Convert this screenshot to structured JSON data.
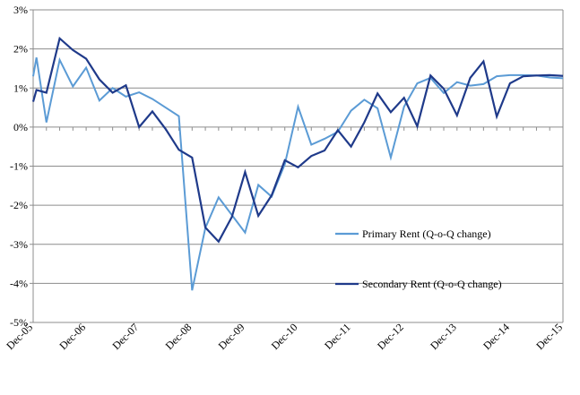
{
  "chart_data": {
    "type": "line",
    "title": "",
    "xlabel": "",
    "ylabel": "",
    "ylim": [
      -5,
      3
    ],
    "y_ticks": [
      3,
      2,
      1,
      0,
      -1,
      -2,
      -3,
      -4,
      -5
    ],
    "y_tick_labels": [
      "3%",
      "2%",
      "1%",
      "0%",
      "-1%",
      "-2%",
      "-3%",
      "-4%",
      "-5%"
    ],
    "x_tick_labels": [
      "Dec-05",
      "Dec-06",
      "Dec-07",
      "Dec-08",
      "Dec-09",
      "Dec-10",
      "Dec-11",
      "Dec-12",
      "Dec-13",
      "Dec-14",
      "Dec-15"
    ],
    "x_ticks": [
      0,
      4,
      8,
      12,
      16,
      20,
      24,
      28,
      32,
      36,
      40
    ],
    "grid": "horizontal",
    "legend_placement": "center-right",
    "series": [
      {
        "name": "Primary Rent (Q-o-Q change)",
        "color": "#5b9bd5",
        "x": [
          0,
          0.25,
          1,
          2,
          3,
          4,
          5,
          6,
          7,
          8,
          9,
          10,
          11,
          12,
          13,
          14,
          15,
          16,
          17,
          18,
          19,
          20,
          21,
          22,
          23,
          24,
          25,
          26,
          27,
          28,
          29,
          30,
          31,
          32,
          33,
          34,
          35,
          36,
          37,
          38,
          39,
          40
        ],
        "values": [
          1.3,
          1.78,
          0.12,
          1.72,
          1.04,
          1.52,
          0.68,
          1.0,
          0.78,
          0.89,
          0.72,
          0.5,
          0.28,
          -4.18,
          -2.58,
          -1.8,
          -2.25,
          -2.7,
          -1.48,
          -1.78,
          -0.95,
          0.52,
          -0.45,
          -0.3,
          -0.12,
          0.42,
          0.7,
          0.48,
          -0.78,
          0.52,
          1.12,
          1.26,
          0.87,
          1.15,
          1.06,
          1.1,
          1.3,
          1.33,
          1.33,
          1.32,
          1.27,
          1.25
        ]
      },
      {
        "name": "Secondary Rent (Q-o-Q change)",
        "color": "#1f3a8a",
        "x": [
          0,
          0.25,
          1,
          2,
          3,
          4,
          5,
          6,
          7,
          8,
          9,
          10,
          11,
          12,
          13,
          14,
          15,
          16,
          17,
          18,
          19,
          20,
          21,
          22,
          23,
          24,
          25,
          26,
          27,
          28,
          29,
          30,
          31,
          32,
          33,
          34,
          35,
          36,
          37,
          38,
          39,
          40
        ],
        "values": [
          0.65,
          0.95,
          0.88,
          2.27,
          1.97,
          1.75,
          1.22,
          0.88,
          1.07,
          0.0,
          0.4,
          -0.05,
          -0.58,
          -0.78,
          -2.57,
          -2.93,
          -2.3,
          -1.15,
          -2.27,
          -1.75,
          -0.85,
          -1.03,
          -0.74,
          -0.6,
          -0.08,
          -0.5,
          0.12,
          0.86,
          0.38,
          0.75,
          0.02,
          1.32,
          0.98,
          0.3,
          1.26,
          1.68,
          0.27,
          1.12,
          1.3,
          1.32,
          1.33,
          1.31
        ]
      }
    ]
  }
}
